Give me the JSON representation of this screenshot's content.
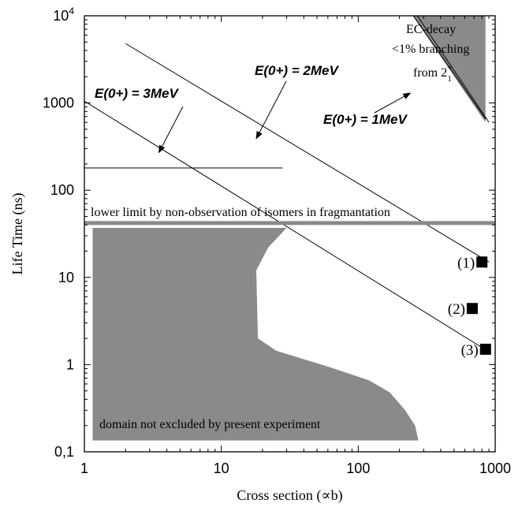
{
  "chart_data": {
    "type": "scatter",
    "xlabel": "Cross section (∝b)",
    "ylabel": "Life Time (ns)",
    "xscale": "log",
    "yscale": "log",
    "xlim": [
      1,
      1000
    ],
    "ylim": [
      0.1,
      10000
    ],
    "xticks": [
      {
        "value": 1,
        "label": "1"
      },
      {
        "value": 10,
        "label": "10"
      },
      {
        "value": 100,
        "label": "100"
      },
      {
        "value": 1000,
        "label": "1000"
      }
    ],
    "yticks": [
      {
        "value": 0.1,
        "label": "0,1"
      },
      {
        "value": 1,
        "label": "1"
      },
      {
        "value": 10,
        "label": "10"
      },
      {
        "value": 100,
        "label": "100"
      },
      {
        "value": 1000,
        "label": "1000"
      },
      {
        "value": 10000,
        "label": "10",
        "sup": "4"
      }
    ],
    "points": [
      {
        "label": "(1)",
        "x": 800,
        "y": 15
      },
      {
        "label": "(2)",
        "x": 680,
        "y": 4.4
      },
      {
        "label": "(3)",
        "x": 850,
        "y": 1.5
      }
    ],
    "lines": [
      {
        "name": "E(0+) = 1MeV",
        "points": [
          [
            270,
            10000
          ],
          [
            900,
            600
          ]
        ]
      },
      {
        "name": "E(0+) = 2MeV",
        "points": [
          [
            2,
            4800
          ],
          [
            900,
            15
          ]
        ]
      },
      {
        "name": "E(0+) = 3MeV",
        "points": [
          [
            1,
            1050
          ],
          [
            900,
            1.4
          ]
        ]
      }
    ],
    "reference_line": {
      "x": [
        1,
        28
      ],
      "y": 180
    },
    "lower_limit": {
      "y": 42,
      "label": "lower limit by non-observation of isomers in fragmantation"
    },
    "ec_region": {
      "polygon": [
        [
          250,
          10000
        ],
        [
          850,
          10000
        ],
        [
          850,
          600
        ]
      ],
      "label_line1": "EC-decay",
      "label_line2": "<1% branching",
      "label_line3_main": "from 2",
      "label_line3_sup": "+",
      "label_line3_sub": "1"
    },
    "allowed_region": {
      "label": "domain not excluded by present experiment",
      "polygon": [
        [
          1.15,
          37
        ],
        [
          30,
          37
        ],
        [
          22,
          22
        ],
        [
          18,
          12
        ],
        [
          18.5,
          2
        ],
        [
          25,
          1.45
        ],
        [
          60,
          0.95
        ],
        [
          120,
          0.66
        ],
        [
          170,
          0.48
        ],
        [
          220,
          0.3
        ],
        [
          260,
          0.2
        ],
        [
          275,
          0.135
        ],
        [
          1.15,
          0.135
        ]
      ]
    },
    "annotations": [
      {
        "text": "E(0+) = 1MeV",
        "arrow_to": [
          240,
          1300
        ]
      },
      {
        "text": "E(0+) = 2MeV",
        "arrow_to": [
          18,
          390
        ]
      },
      {
        "text": "E(0+) = 3MeV",
        "arrow_to": [
          3.5,
          270
        ]
      }
    ],
    "colors": {
      "region": "#8a8a8a",
      "limit_line": "#8a8a8a",
      "line": "#000000",
      "marker": "#000000"
    }
  }
}
